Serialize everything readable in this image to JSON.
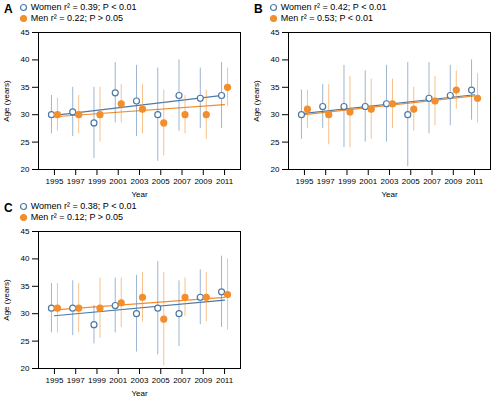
{
  "chart_data": [
    {
      "type": "scatter",
      "title": "A",
      "xlabel": "Year",
      "ylabel": "Age (years)",
      "x": [
        1995,
        1997,
        1999,
        2001,
        2003,
        2005,
        2007,
        2009,
        2011
      ],
      "xlim": [
        1993.5,
        2012.5
      ],
      "xticks": [
        1995,
        1997,
        1999,
        2001,
        2003,
        2005,
        2007,
        2009,
        2011
      ],
      "ylim": [
        20,
        45
      ],
      "yticks": [
        20,
        25,
        30,
        35,
        40,
        45
      ],
      "grid": false,
      "legend": "upper left",
      "series": [
        {
          "name": "Women r² = 0.39; P < 0.01",
          "color": "#4e79a7",
          "marker": "ring",
          "values": [
            30.0,
            30.5,
            28.5,
            34.0,
            32.5,
            30.0,
            33.5,
            33.0,
            33.5
          ],
          "errors": [
            3.5,
            4.5,
            6.5,
            5.5,
            6.5,
            8.5,
            6.5,
            5.5,
            6.0
          ],
          "trend": [
            29.889,
            33.556
          ]
        },
        {
          "name": "Men r² = 0.22; P > 0.05",
          "color": "#f28e2c",
          "marker": "circle",
          "values": [
            30.0,
            30.0,
            30.0,
            32.0,
            31.0,
            28.5,
            30.0,
            30.0,
            35.0
          ],
          "errors": [
            3.0,
            3.5,
            5.0,
            3.5,
            4.5,
            6.0,
            3.5,
            4.5,
            3.5
          ],
          "trend": [
            29.622,
            31.822
          ]
        }
      ]
    },
    {
      "type": "scatter",
      "title": "B",
      "xlabel": "Year",
      "ylabel": "Age (years)",
      "x": [
        1995,
        1997,
        1999,
        2001,
        2003,
        2005,
        2007,
        2009,
        2011
      ],
      "xlim": [
        1993.5,
        2012.5
      ],
      "xticks": [
        1995,
        1997,
        1999,
        2001,
        2003,
        2005,
        2007,
        2009,
        2011
      ],
      "ylim": [
        20,
        45
      ],
      "yticks": [
        20,
        25,
        30,
        35,
        40,
        45
      ],
      "grid": false,
      "legend": "upper left",
      "series": [
        {
          "name": "Women r² = 0.42; P < 0.01",
          "color": "#4e79a7",
          "marker": "ring",
          "values": [
            30.0,
            31.5,
            31.5,
            31.5,
            32.0,
            30.0,
            33.0,
            33.5,
            34.5
          ],
          "errors": [
            4.5,
            4.0,
            7.5,
            6.5,
            7.0,
            9.5,
            6.5,
            5.5,
            5.5
          ],
          "trend": [
            30.244,
            33.644
          ]
        },
        {
          "name": "Men r² = 0.53; P < 0.01",
          "color": "#f28e2c",
          "marker": "circle",
          "values": [
            31.0,
            30.0,
            30.5,
            31.0,
            32.0,
            31.0,
            32.5,
            34.5,
            33.0
          ],
          "errors": [
            3.5,
            5.5,
            6.5,
            5.5,
            4.5,
            4.0,
            4.5,
            3.5,
            4.5
          ],
          "trend": [
            30.022,
            33.422
          ]
        }
      ]
    },
    {
      "type": "scatter",
      "title": "C",
      "xlabel": "Year",
      "ylabel": "Age (years)",
      "x": [
        1995,
        1997,
        1999,
        2001,
        2003,
        2005,
        2007,
        2009,
        2011
      ],
      "xlim": [
        1993.5,
        2012.5
      ],
      "xticks": [
        1995,
        1997,
        1999,
        2001,
        2003,
        2005,
        2007,
        2009,
        2011
      ],
      "ylim": [
        20,
        45
      ],
      "yticks": [
        20,
        25,
        30,
        35,
        40,
        45
      ],
      "grid": false,
      "legend": "upper left",
      "series": [
        {
          "name": "Women r² = 0.38; P < 0.01",
          "color": "#4e79a7",
          "marker": "ring",
          "values": [
            31.0,
            31.0,
            28.0,
            31.5,
            30.0,
            31.0,
            30.0,
            33.0,
            34.0
          ],
          "errors": [
            4.5,
            5.0,
            3.5,
            5.0,
            7.0,
            8.5,
            6.0,
            5.0,
            6.5
          ],
          "trend": [
            29.622,
            32.489
          ]
        },
        {
          "name": "Men r² = 0.12; P > 0.05",
          "color": "#f28e2c",
          "marker": "circle",
          "values": [
            31.0,
            31.0,
            31.0,
            32.0,
            33.0,
            29.0,
            33.0,
            33.0,
            33.5
          ],
          "errors": [
            4.5,
            4.5,
            5.5,
            4.5,
            4.5,
            8.5,
            3.5,
            4.5,
            6.5
          ],
          "trend": [
            30.7,
            32.967
          ]
        }
      ]
    }
  ]
}
